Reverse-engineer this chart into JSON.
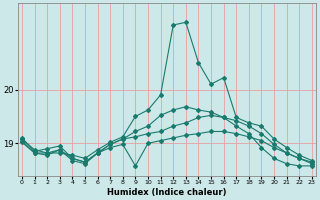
{
  "xlabel": "Humidex (Indice chaleur)",
  "background_color": "#cce8e8",
  "grid_color": "#e8a0a0",
  "line_color": "#1a7a6e",
  "yticks": [
    19,
    20
  ],
  "xticks": [
    0,
    1,
    2,
    3,
    4,
    5,
    6,
    7,
    8,
    9,
    10,
    11,
    12,
    13,
    14,
    15,
    16,
    17,
    18,
    19,
    20,
    21,
    22,
    23
  ],
  "xlim": [
    -0.3,
    23.3
  ],
  "ylim": [
    18.4,
    21.6
  ],
  "lines": [
    {
      "x": [
        0,
        1,
        2,
        3,
        4,
        5,
        6,
        7,
        8,
        9,
        10,
        11,
        12,
        13,
        14,
        15,
        16,
        17,
        18,
        19,
        20,
        21,
        22,
        23
      ],
      "y": [
        19.1,
        18.85,
        18.9,
        18.95,
        18.72,
        18.65,
        18.82,
        18.92,
        18.98,
        18.58,
        19.0,
        19.05,
        19.1,
        19.15,
        19.18,
        19.22,
        19.22,
        19.18,
        19.12,
        19.05,
        18.92,
        18.82,
        18.72,
        18.65
      ]
    },
    {
      "x": [
        0,
        1,
        2,
        3,
        4,
        5,
        6,
        7,
        8,
        9,
        10,
        11,
        12,
        13,
        14,
        15,
        16,
        17,
        18,
        19,
        20,
        21,
        22,
        23
      ],
      "y": [
        19.05,
        18.82,
        18.78,
        18.88,
        18.68,
        18.62,
        18.82,
        18.98,
        19.08,
        19.12,
        19.18,
        19.22,
        19.32,
        19.38,
        19.48,
        19.52,
        19.48,
        19.42,
        19.32,
        19.18,
        18.98,
        18.82,
        18.72,
        18.62
      ]
    },
    {
      "x": [
        0,
        1,
        2,
        3,
        4,
        5,
        6,
        7,
        8,
        9,
        10,
        11,
        12,
        13,
        14,
        15,
        16,
        17,
        18,
        19,
        20,
        21,
        22,
        23
      ],
      "y": [
        19.08,
        18.88,
        18.82,
        18.82,
        18.78,
        18.72,
        18.88,
        19.02,
        19.12,
        19.5,
        19.62,
        19.9,
        21.2,
        21.25,
        20.5,
        20.1,
        20.22,
        19.48,
        19.38,
        19.32,
        19.08,
        18.92,
        18.78,
        18.68
      ]
    },
    {
      "x": [
        0,
        1,
        2,
        3,
        4,
        5,
        6,
        7,
        8,
        9,
        10,
        11,
        12,
        13,
        14,
        15,
        16,
        17,
        18,
        19,
        20,
        21,
        22,
        23
      ],
      "y": [
        19.02,
        18.82,
        18.82,
        18.88,
        18.72,
        18.65,
        18.82,
        18.98,
        19.08,
        19.22,
        19.32,
        19.52,
        19.62,
        19.68,
        19.62,
        19.58,
        19.48,
        19.32,
        19.18,
        18.92,
        18.72,
        18.62,
        18.58,
        18.58
      ]
    }
  ]
}
